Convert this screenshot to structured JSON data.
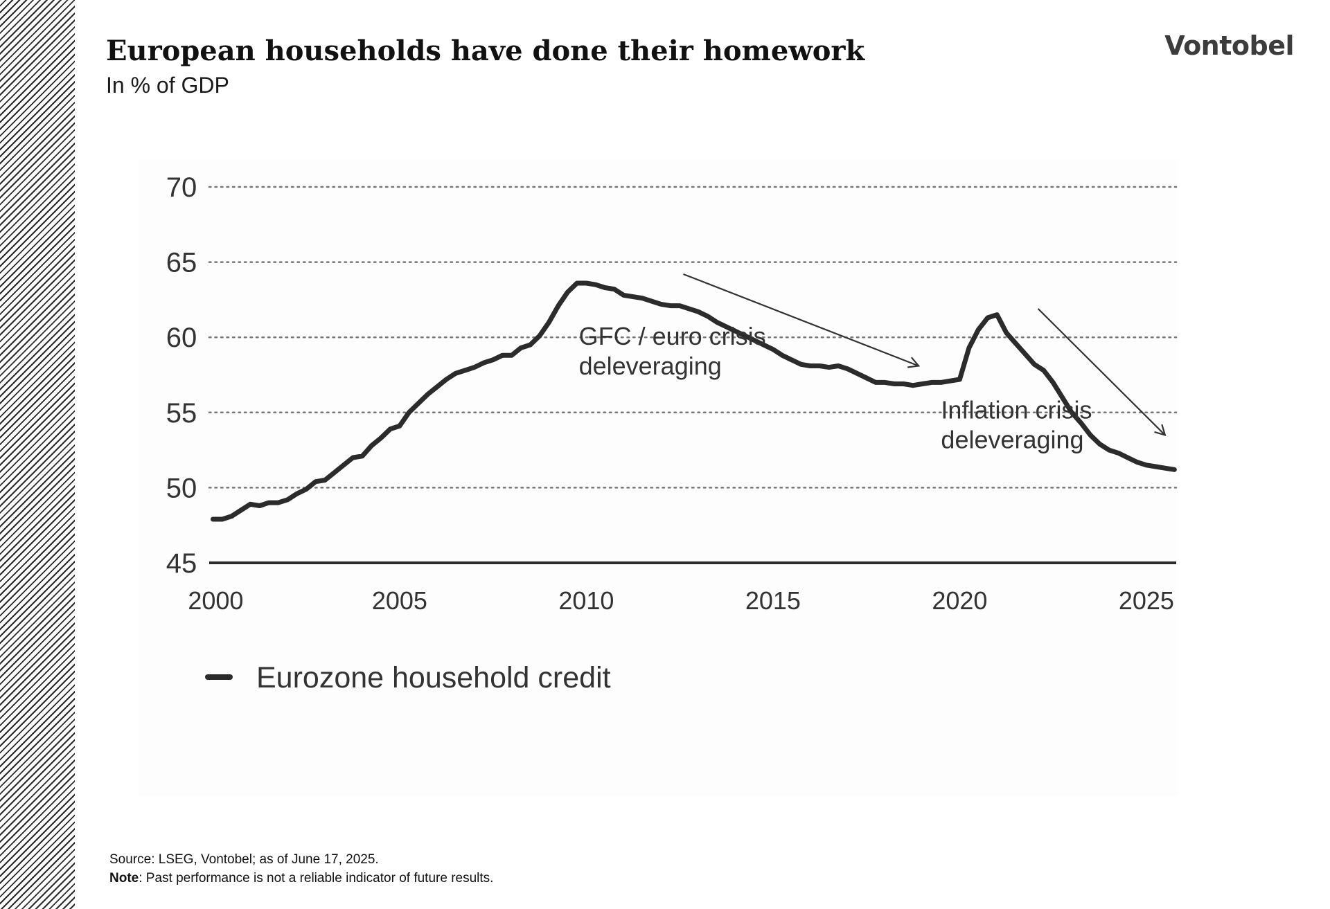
{
  "header": {
    "title": "European households have done their homework",
    "subtitle": "In % of GDP",
    "logo_text": "Vontobel"
  },
  "footer": {
    "source": "Source: LSEG, Vontobel; as of June 17, 2025.",
    "note_label": "Note",
    "note_text": ": Past performance is not a reliable indicator of future results."
  },
  "colors": {
    "line": "#2b2b2b",
    "grid": "#777777",
    "axis": "#2b2b2b",
    "arrow": "#333333"
  },
  "chart_data": {
    "type": "line",
    "title": "",
    "xlabel": "",
    "ylabel": "",
    "ylim": [
      45,
      70
    ],
    "xlim": [
      1999.9,
      2025.8
    ],
    "yticks": [
      "45",
      "50",
      "55",
      "60",
      "65",
      "70"
    ],
    "ytick_values": [
      45,
      50,
      55,
      60,
      65,
      70
    ],
    "xticks": [
      "2000",
      "2005",
      "2010",
      "2015",
      "2020",
      "2025"
    ],
    "xtick_values": [
      2000,
      2005,
      2010,
      2015,
      2020,
      2025
    ],
    "grid": "horizontal dotted",
    "legend_position": "bottom-left",
    "series": [
      {
        "name": "Eurozone household credit",
        "x": [
          2000.0,
          2000.25,
          2000.5,
          2000.75,
          2001.0,
          2001.25,
          2001.5,
          2001.75,
          2002.0,
          2002.25,
          2002.5,
          2002.75,
          2003.0,
          2003.25,
          2003.5,
          2003.75,
          2004.0,
          2004.25,
          2004.5,
          2004.75,
          2005.0,
          2005.25,
          2005.5,
          2005.75,
          2006.0,
          2006.25,
          2006.5,
          2006.75,
          2007.0,
          2007.25,
          2007.5,
          2007.75,
          2008.0,
          2008.25,
          2008.5,
          2008.75,
          2009.0,
          2009.25,
          2009.5,
          2009.75,
          2010.0,
          2010.25,
          2010.5,
          2010.75,
          2011.0,
          2011.25,
          2011.5,
          2011.75,
          2012.0,
          2012.25,
          2012.5,
          2012.75,
          2013.0,
          2013.25,
          2013.5,
          2013.75,
          2014.0,
          2014.25,
          2014.5,
          2014.75,
          2015.0,
          2015.25,
          2015.5,
          2015.75,
          2016.0,
          2016.25,
          2016.5,
          2016.75,
          2017.0,
          2017.25,
          2017.5,
          2017.75,
          2018.0,
          2018.25,
          2018.5,
          2018.75,
          2019.0,
          2019.25,
          2019.5,
          2019.75,
          2020.0,
          2020.25,
          2020.5,
          2020.75,
          2021.0,
          2021.25,
          2021.5,
          2021.75,
          2022.0,
          2022.25,
          2022.5,
          2022.75,
          2023.0,
          2023.25,
          2023.5,
          2023.75,
          2024.0,
          2024.25,
          2024.5,
          2024.75,
          2025.0,
          2025.25,
          2025.5,
          2025.75
        ],
        "values": [
          47.9,
          47.9,
          48.1,
          48.5,
          48.9,
          48.8,
          49.0,
          49.0,
          49.2,
          49.6,
          49.9,
          50.4,
          50.5,
          51.0,
          51.5,
          52.0,
          52.1,
          52.8,
          53.3,
          53.9,
          54.1,
          55.0,
          55.6,
          56.2,
          56.7,
          57.2,
          57.6,
          57.8,
          58.0,
          58.3,
          58.5,
          58.8,
          58.8,
          59.3,
          59.5,
          60.1,
          61.0,
          62.1,
          63.0,
          63.6,
          63.6,
          63.5,
          63.3,
          63.2,
          62.8,
          62.7,
          62.6,
          62.4,
          62.2,
          62.1,
          62.1,
          61.9,
          61.7,
          61.4,
          61.0,
          60.7,
          60.4,
          60.1,
          59.8,
          59.5,
          59.2,
          58.8,
          58.5,
          58.2,
          58.1,
          58.1,
          58.0,
          58.1,
          57.9,
          57.6,
          57.3,
          57.0,
          57.0,
          56.9,
          56.9,
          56.8,
          56.9,
          57.0,
          57.0,
          57.1,
          57.2,
          59.3,
          60.5,
          61.3,
          61.5,
          60.3,
          59.6,
          58.9,
          58.2,
          57.8,
          57.0,
          56.0,
          55.0,
          54.3,
          53.5,
          52.9,
          52.5,
          52.3,
          52.0,
          51.7,
          51.5,
          51.4,
          51.3,
          51.2
        ]
      }
    ],
    "annotations": [
      {
        "lines": [
          "GFC / euro crisis",
          "deleveraging"
        ]
      },
      {
        "lines": [
          "Inflation crisis",
          "deleveraging"
        ]
      }
    ]
  }
}
